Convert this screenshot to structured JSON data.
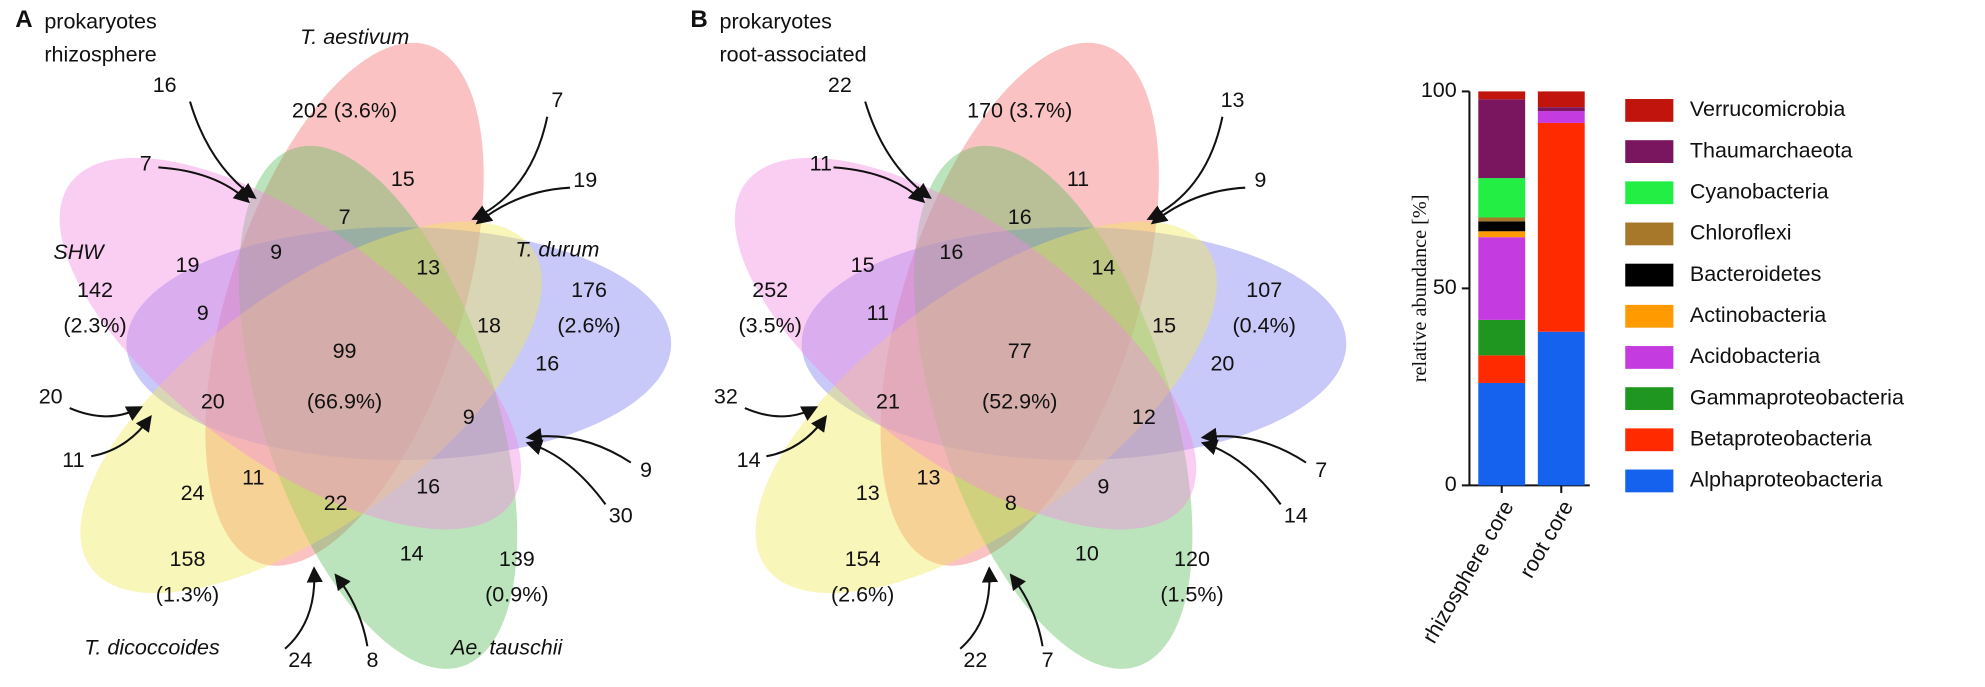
{
  "panels": [
    {
      "letter": "A",
      "title": [
        "prokaryotes",
        "rhizosphere"
      ],
      "set_names": [
        "T. aestivum",
        "SHW",
        "T. durum",
        "T. dicoccoides",
        "Ae. tauschii"
      ],
      "regions": [
        "16",
        "7",
        "202 (3.6%)",
        "15",
        "7",
        "19",
        "7",
        "142",
        "(2.3%)",
        "19",
        "9",
        "13",
        "176",
        "(2.6%)",
        "9",
        "18",
        "99",
        "(66.9%)",
        "16",
        "20",
        "20",
        "9",
        "11",
        "9",
        "24",
        "11",
        "22",
        "16",
        "30",
        "158",
        "(1.3%)",
        "14",
        "139",
        "(0.9%)",
        "24",
        "8"
      ]
    },
    {
      "letter": "B",
      "title": [
        "prokaryotes",
        "root-associated"
      ],
      "regions": [
        "22",
        "11",
        "170 (3.7%)",
        "11",
        "13",
        "9",
        "16",
        "252",
        "(3.5%)",
        "15",
        "16",
        "14",
        "107",
        "(0.4%)",
        "11",
        "15",
        "77",
        "(52.9%)",
        "20",
        "32",
        "21",
        "12",
        "14",
        "7",
        "13",
        "13",
        "8",
        "9",
        "14",
        "154",
        "(2.6%)",
        "10",
        "120",
        "(1.5%)",
        "22",
        "7"
      ]
    }
  ],
  "chart_data": {
    "type": "stacked_bar",
    "ylabel": "relative abundance [%]",
    "categories": [
      "rhizosphere core",
      "root core"
    ],
    "ylim": [
      0,
      100
    ],
    "yticks": [
      0,
      50,
      100
    ],
    "series": [
      {
        "name": "Alphaproteobacteria",
        "color": "#1462ee",
        "values": [
          26,
          39
        ]
      },
      {
        "name": "Betaproteobacteria",
        "color": "#ff2a00",
        "values": [
          7,
          53
        ]
      },
      {
        "name": "Gammaproteobacteria",
        "color": "#1f961f",
        "values": [
          9,
          0
        ]
      },
      {
        "name": "Acidobacteria",
        "color": "#c43be0",
        "values": [
          21,
          3
        ]
      },
      {
        "name": "Actinobacteria",
        "color": "#ff9a00",
        "values": [
          1.5,
          0
        ]
      },
      {
        "name": "Bacteroidetes",
        "color": "#000000",
        "values": [
          2.5,
          0
        ]
      },
      {
        "name": "Chloroflexi",
        "color": "#a8782a",
        "values": [
          1,
          0
        ]
      },
      {
        "name": "Cyanobacteria",
        "color": "#22ee44",
        "values": [
          10,
          0
        ]
      },
      {
        "name": "Thaumarchaeota",
        "color": "#7a1560",
        "values": [
          20,
          1
        ]
      },
      {
        "name": "Verrucomicrobia",
        "color": "#c0140c",
        "values": [
          2,
          4
        ]
      }
    ]
  }
}
